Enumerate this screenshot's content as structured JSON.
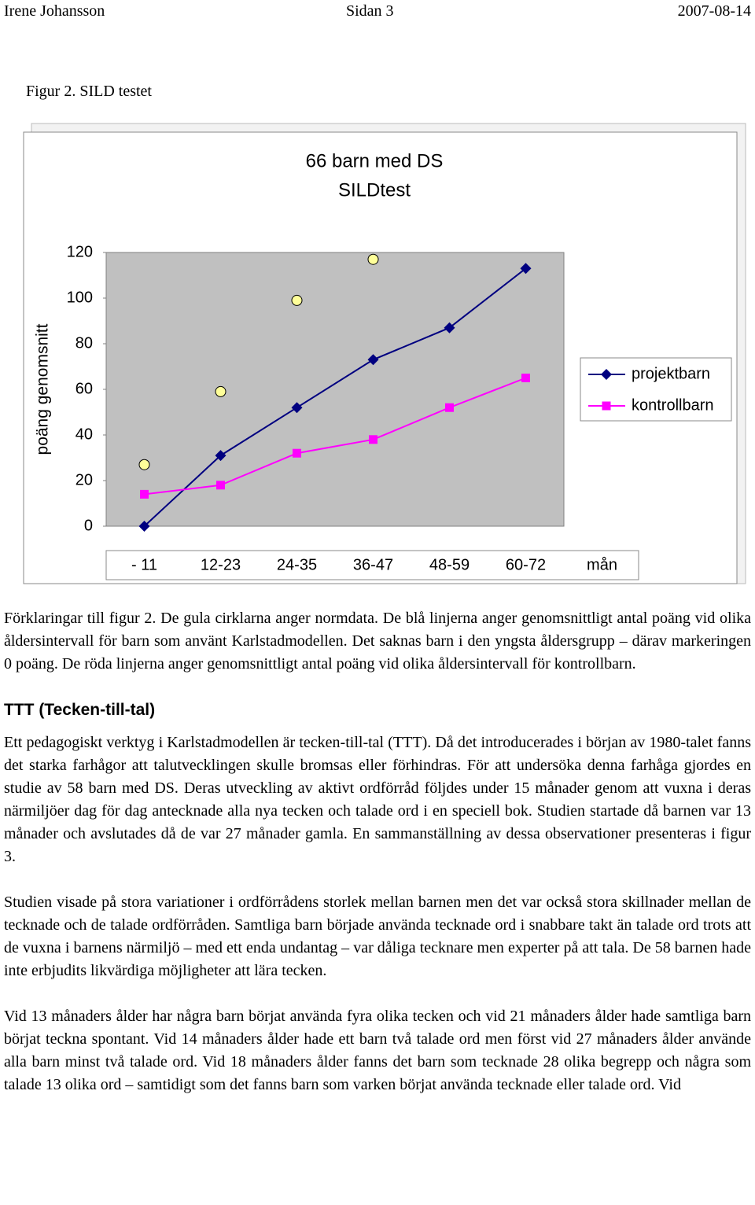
{
  "header": {
    "author": "Irene Johansson",
    "page": "Sidan 3",
    "date": "2007-08-14"
  },
  "figure_caption": "Figur 2. SILD testet",
  "chart_data": {
    "type": "line",
    "title": [
      "66 barn med DS",
      "SILDtest"
    ],
    "ylabel": "poäng genomsnitt",
    "xlabel": "mån",
    "categories": [
      "- 11",
      "12-23",
      "24-35",
      "36-47",
      "48-59",
      "60-72"
    ],
    "series": [
      {
        "name": "projektbarn",
        "color": "#000080",
        "marker": "diamond",
        "values": [
          0,
          31,
          52,
          73,
          87,
          113
        ]
      },
      {
        "name": "kontrollbarn",
        "color": "#ff00ff",
        "marker": "square",
        "values": [
          14,
          18,
          32,
          38,
          52,
          65
        ]
      },
      {
        "color": "#ffff99",
        "marker": "circle",
        "line": false,
        "values": [
          27,
          59,
          99,
          117,
          null,
          null
        ]
      }
    ],
    "ylim": [
      0,
      120
    ],
    "yticks": [
      0,
      20,
      40,
      60,
      80,
      100,
      120
    ],
    "grid": false,
    "legend": "right"
  },
  "paragraphs": [
    "Förklaringar till figur 2. De gula cirklarna anger normdata. De blå linjerna anger genomsnittligt antal poäng vid olika åldersintervall för barn som använt Karlstadmodellen. Det saknas barn i den yngsta åldersgrupp – därav markeringen 0 poäng. De röda linjerna anger genomsnittligt antal poäng vid olika åldersintervall för kontrollbarn."
  ],
  "section": {
    "heading": "TTT (Tecken-till-tal)",
    "paragraphs": [
      "Ett pedagogiskt verktyg i Karlstadmodellen är tecken-till-tal (TTT). Då det introducerades i början av 1980-talet fanns det starka farhågor att talutvecklingen skulle bromsas eller förhindras. För att undersöka denna farhåga gjordes en studie av 58 barn med DS. Deras utveckling av aktivt ordförråd följdes under 15 månader genom att vuxna i deras närmiljöer dag för dag antecknade alla nya tecken och talade ord i en speciell bok. Studien startade då barnen var 13 månader och avslutades då de var 27 månader gamla. En sammanställning av dessa observationer presenteras i figur 3.",
      "Studien visade på stora variationer i ordförrådens storlek mellan barnen men det var också stora skillnader mellan de tecknade och de talade ordförråden. Samtliga barn började använda tecknade ord i snabbare takt än talade ord trots att de vuxna i barnens närmiljö – med ett enda undantag – var dåliga tecknare men experter på att tala. De 58 barnen hade inte erbjudits likvärdiga möjligheter att lära tecken.",
      "Vid 13 månaders ålder har några barn börjat använda fyra olika tecken och vid 21 månaders ålder hade samtliga barn börjat teckna spontant. Vid 14 månaders ålder hade ett barn två talade ord men först vid 27 månaders ålder använde alla barn minst två talade ord. Vid 18 månaders ålder fanns det barn som tecknade 28 olika begrepp och några som talade 13 olika ord – samtidigt som det fanns barn som varken börjat använda tecknade eller talade ord. Vid"
    ]
  }
}
